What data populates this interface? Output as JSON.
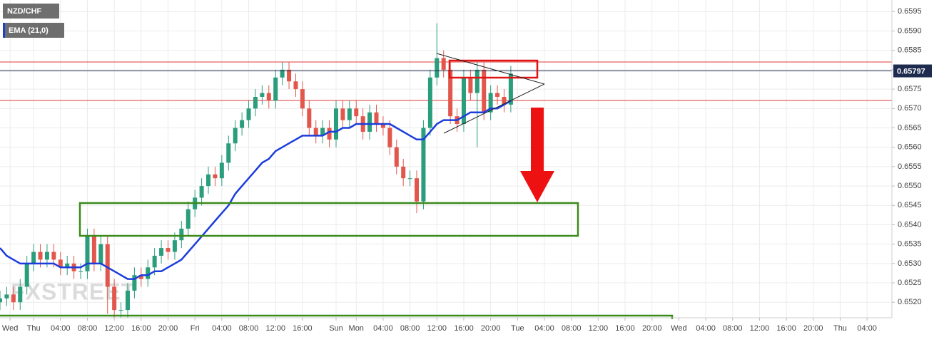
{
  "chart_data": {
    "type": "candlestick",
    "title": "NZD/CHF",
    "watermark": "FXSTREET",
    "x": [
      -5,
      -4,
      -3,
      -2,
      -1,
      0,
      1,
      2,
      3,
      4,
      5,
      6,
      7,
      8,
      9,
      10,
      11,
      12,
      13,
      14,
      15,
      16,
      17,
      18,
      19,
      20,
      21,
      22,
      23,
      24,
      25,
      26,
      27,
      28,
      29,
      30,
      31,
      32,
      33,
      34,
      35,
      36,
      37,
      38,
      39,
      40,
      41,
      42,
      43,
      44,
      45,
      46,
      47,
      48,
      49,
      50,
      51,
      52,
      53,
      54,
      55,
      56,
      57,
      58,
      59,
      60,
      61,
      62,
      63,
      64,
      65,
      66,
      67,
      68,
      69,
      70,
      71
    ],
    "open": [
      0.652,
      0.6521,
      0.6522,
      0.652,
      0.6524,
      0.653,
      0.6533,
      0.6531,
      0.6533,
      0.6531,
      0.6529,
      0.653,
      0.6528,
      0.6528,
      0.6537,
      0.653,
      0.6535,
      0.6524,
      0.6518,
      0.6518,
      0.6523,
      0.6527,
      0.6526,
      0.6529,
      0.6532,
      0.6534,
      0.6533,
      0.6536,
      0.6539,
      0.6544,
      0.6547,
      0.655,
      0.6553,
      0.6552,
      0.6556,
      0.6561,
      0.6565,
      0.6567,
      0.657,
      0.6573,
      0.6574,
      0.6572,
      0.6578,
      0.658,
      0.6577,
      0.6575,
      0.657,
      0.6565,
      0.6563,
      0.6565,
      0.6562,
      0.657,
      0.6567,
      0.657,
      0.6568,
      0.6564,
      0.6569,
      0.6566,
      0.6565,
      0.656,
      0.6555,
      0.6552,
      0.6552,
      0.6546,
      0.6565,
      0.6578,
      0.6583,
      0.658,
      0.6568,
      0.6566,
      0.6578,
      0.6574,
      0.658,
      0.6569,
      0.6574,
      0.6573,
      0.6571
    ],
    "high": [
      0.6523,
      0.6524,
      0.6524,
      0.6526,
      0.6532,
      0.6535,
      0.6535,
      0.6535,
      0.6535,
      0.6533,
      0.6532,
      0.6532,
      0.653,
      0.6539,
      0.6539,
      0.6537,
      0.6537,
      0.6526,
      0.652,
      0.6525,
      0.6529,
      0.6529,
      0.6531,
      0.6534,
      0.6536,
      0.6536,
      0.6538,
      0.6541,
      0.6546,
      0.6549,
      0.6552,
      0.6555,
      0.6555,
      0.6558,
      0.6563,
      0.6567,
      0.6569,
      0.6572,
      0.6575,
      0.6576,
      0.6576,
      0.658,
      0.6582,
      0.6582,
      0.6579,
      0.6577,
      0.6572,
      0.6567,
      0.6567,
      0.6567,
      0.6572,
      0.6572,
      0.6572,
      0.6572,
      0.657,
      0.6571,
      0.6571,
      0.6568,
      0.6567,
      0.6562,
      0.6557,
      0.6554,
      0.6554,
      0.6567,
      0.658,
      0.6592,
      0.6585,
      0.6582,
      0.657,
      0.658,
      0.658,
      0.6582,
      0.6582,
      0.6576,
      0.6576,
      0.6575,
      0.6581
    ],
    "low": [
      0.6518,
      0.6519,
      0.6518,
      0.6518,
      0.6522,
      0.6528,
      0.6529,
      0.6529,
      0.6529,
      0.6527,
      0.6527,
      0.6526,
      0.6526,
      0.6526,
      0.6528,
      0.6528,
      0.6517,
      0.6516,
      0.6516,
      0.6516,
      0.6521,
      0.6524,
      0.6524,
      0.6527,
      0.653,
      0.6531,
      0.6531,
      0.6534,
      0.6537,
      0.6542,
      0.6545,
      0.6548,
      0.655,
      0.655,
      0.6554,
      0.6559,
      0.6563,
      0.6565,
      0.6568,
      0.6571,
      0.657,
      0.657,
      0.6576,
      0.6575,
      0.6573,
      0.6568,
      0.6563,
      0.6561,
      0.6561,
      0.656,
      0.656,
      0.6565,
      0.6565,
      0.6566,
      0.6562,
      0.6562,
      0.6564,
      0.6563,
      0.6558,
      0.6553,
      0.655,
      0.655,
      0.6543,
      0.6544,
      0.6563,
      0.6576,
      0.6578,
      0.6566,
      0.6564,
      0.6564,
      0.6572,
      0.656,
      0.6567,
      0.6567,
      0.6571,
      0.6569,
      0.6569
    ],
    "close": [
      0.6521,
      0.6522,
      0.652,
      0.6524,
      0.653,
      0.6533,
      0.6531,
      0.6533,
      0.6531,
      0.6529,
      0.653,
      0.6528,
      0.6528,
      0.6537,
      0.653,
      0.6535,
      0.6524,
      0.6518,
      0.6518,
      0.6523,
      0.6527,
      0.6526,
      0.6529,
      0.6532,
      0.6534,
      0.6533,
      0.6536,
      0.6539,
      0.6544,
      0.6547,
      0.655,
      0.6553,
      0.6552,
      0.6556,
      0.6561,
      0.6565,
      0.6567,
      0.657,
      0.6573,
      0.6574,
      0.6572,
      0.6578,
      0.658,
      0.6577,
      0.6575,
      0.657,
      0.6565,
      0.6563,
      0.6565,
      0.6562,
      0.657,
      0.6567,
      0.657,
      0.6568,
      0.6564,
      0.6569,
      0.6566,
      0.6565,
      0.656,
      0.6555,
      0.6552,
      0.6552,
      0.6546,
      0.6565,
      0.6578,
      0.6583,
      0.658,
      0.6568,
      0.6566,
      0.6578,
      0.6574,
      0.658,
      0.6569,
      0.6574,
      0.6573,
      0.6571,
      0.6579
    ],
    "colors": {
      "up": "#2a9d7c",
      "down": "#e2574c"
    },
    "series": [
      {
        "name": "EMA (21,0)",
        "color": "#1c3ddc",
        "values": [
          0.6534,
          0.6532,
          0.6531,
          0.653,
          0.653,
          0.653,
          0.653,
          0.653,
          0.653,
          0.6529,
          0.6529,
          0.6529,
          0.6529,
          0.653,
          0.653,
          0.653,
          0.6529,
          0.6528,
          0.6527,
          0.6526,
          0.6526,
          0.6527,
          0.6527,
          0.6528,
          0.6528,
          0.6529,
          0.653,
          0.6531,
          0.6533,
          0.6535,
          0.6537,
          0.6539,
          0.6541,
          0.6543,
          0.6545,
          0.6548,
          0.655,
          0.6552,
          0.6554,
          0.6556,
          0.6557,
          0.6559,
          0.656,
          0.6561,
          0.6562,
          0.6563,
          0.6563,
          0.6563,
          0.6563,
          0.6564,
          0.6564,
          0.6565,
          0.6565,
          0.6566,
          0.6566,
          0.6566,
          0.6566,
          0.6566,
          0.6566,
          0.6565,
          0.6564,
          0.6563,
          0.6562,
          0.6562,
          0.6564,
          0.6566,
          0.6567,
          0.6567,
          0.6567,
          0.6568,
          0.6569,
          0.6569,
          0.6569,
          0.657,
          0.657,
          0.6571,
          0.6572
        ]
      }
    ],
    "last_price": 0.65797,
    "last_price_color": "#1e2b4f",
    "xlim": [
      -5,
      127.7
    ],
    "ylim": [
      0.6516,
      0.6598
    ],
    "xticks": [
      {
        "value": -3.5,
        "label": "Wed"
      },
      {
        "value": 0,
        "label": "Thu"
      },
      {
        "value": 4,
        "label": "04:00"
      },
      {
        "value": 8,
        "label": "08:00"
      },
      {
        "value": 12,
        "label": "12:00"
      },
      {
        "value": 16,
        "label": "16:00"
      },
      {
        "value": 20,
        "label": "20:00"
      },
      {
        "value": 24,
        "label": "Fri"
      },
      {
        "value": 28,
        "label": "04:00"
      },
      {
        "value": 32,
        "label": "08:00"
      },
      {
        "value": 36,
        "label": "12:00"
      },
      {
        "value": 40,
        "label": "16:00"
      },
      {
        "value": 45,
        "label": "Sun"
      },
      {
        "value": 48,
        "label": "Mon"
      },
      {
        "value": 52,
        "label": "04:00"
      },
      {
        "value": 56,
        "label": "08:00"
      },
      {
        "value": 60,
        "label": "12:00"
      },
      {
        "value": 64,
        "label": "16:00"
      },
      {
        "value": 68,
        "label": "20:00"
      },
      {
        "value": 72,
        "label": "Tue"
      },
      {
        "value": 76,
        "label": "04:00"
      },
      {
        "value": 80,
        "label": "08:00"
      },
      {
        "value": 84,
        "label": "12:00"
      },
      {
        "value": 88,
        "label": "16:00"
      },
      {
        "value": 92,
        "label": "20:00"
      },
      {
        "value": 96,
        "label": "Wed"
      },
      {
        "value": 100,
        "label": "04:00"
      },
      {
        "value": 104,
        "label": "08:00"
      },
      {
        "value": 108,
        "label": "12:00"
      },
      {
        "value": 112,
        "label": "16:00"
      },
      {
        "value": 116,
        "label": "20:00"
      },
      {
        "value": 120,
        "label": "Thu"
      },
      {
        "value": 124,
        "label": "04:00"
      }
    ],
    "yticks": [
      {
        "value": 0.652,
        "label": "0.6520"
      },
      0.6525,
      {
        "value": 0.653,
        "label": "0.6530"
      },
      0.6535,
      {
        "value": 0.654,
        "label": "0.6540"
      },
      0.6545,
      {
        "value": 0.655,
        "label": "0.6550"
      },
      0.6555,
      {
        "value": 0.656,
        "label": "0.6560"
      },
      0.6565,
      {
        "value": 0.657,
        "label": "0.6570"
      },
      0.6575,
      {
        "value": 0.658,
        "label": "0.6580"
      },
      0.6585,
      {
        "value": 0.659,
        "label": "0.6590"
      },
      0.6595
    ],
    "grid": true
  }
}
